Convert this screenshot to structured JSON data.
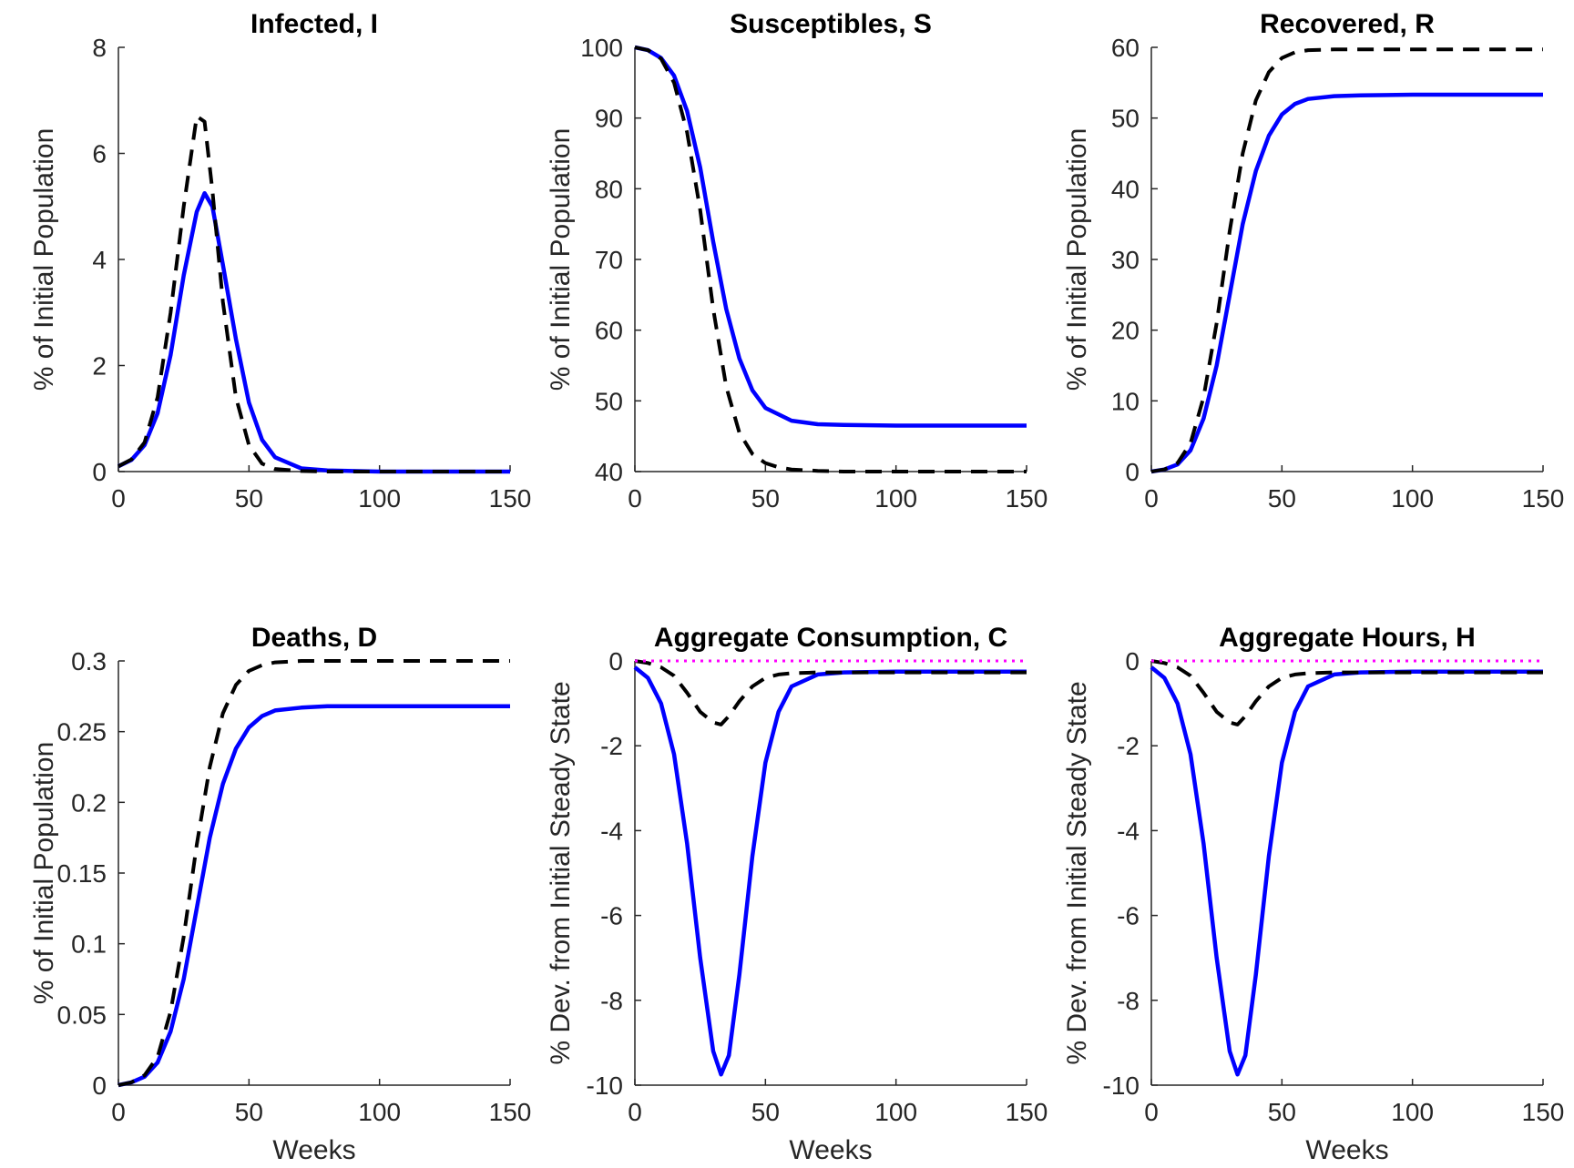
{
  "figure": {
    "colors": {
      "series1": "#0000ff",
      "series2": "#000000",
      "reference": "#ff00ff",
      "axis": "#262626"
    }
  },
  "chart_data": [
    {
      "type": "line",
      "title": "Infected, I",
      "xlabel": "",
      "ylabel": "% of Initial Population",
      "xlim": [
        0,
        150
      ],
      "ylim": [
        0,
        8
      ],
      "xticks": [
        0,
        50,
        100,
        150
      ],
      "yticks": [
        0,
        2,
        4,
        6,
        8
      ],
      "series": [
        {
          "style": "solid",
          "color": "#0000ff",
          "x": [
            0,
            5,
            10,
            15,
            20,
            25,
            30,
            33,
            36,
            40,
            45,
            50,
            55,
            60,
            70,
            80,
            100,
            150
          ],
          "y": [
            0.1,
            0.22,
            0.5,
            1.1,
            2.2,
            3.7,
            4.9,
            5.25,
            5.0,
            3.9,
            2.5,
            1.3,
            0.6,
            0.27,
            0.06,
            0.02,
            0.0,
            0.0
          ]
        },
        {
          "style": "dashed",
          "color": "#000000",
          "x": [
            0,
            5,
            10,
            15,
            20,
            25,
            30,
            33,
            36,
            40,
            45,
            50,
            55,
            60,
            70,
            80,
            100,
            150
          ],
          "y": [
            0.1,
            0.23,
            0.55,
            1.4,
            3.0,
            5.0,
            6.7,
            6.6,
            5.3,
            3.2,
            1.4,
            0.5,
            0.15,
            0.05,
            0.01,
            0.0,
            0.0,
            0.0
          ]
        }
      ]
    },
    {
      "type": "line",
      "title": "Susceptibles, S",
      "xlabel": "",
      "ylabel": "% of Initial Population",
      "xlim": [
        0,
        150
      ],
      "ylim": [
        40,
        100
      ],
      "xticks": [
        0,
        50,
        100,
        150
      ],
      "yticks": [
        40,
        50,
        60,
        70,
        80,
        90,
        100
      ],
      "series": [
        {
          "style": "solid",
          "color": "#0000ff",
          "x": [
            0,
            5,
            10,
            15,
            20,
            25,
            30,
            35,
            40,
            45,
            50,
            60,
            70,
            80,
            100,
            150
          ],
          "y": [
            100,
            99.6,
            98.5,
            96.0,
            91.0,
            83.0,
            72.5,
            63.0,
            56.0,
            51.5,
            49.0,
            47.2,
            46.7,
            46.6,
            46.5,
            46.5
          ]
        },
        {
          "style": "dashed",
          "color": "#000000",
          "x": [
            0,
            5,
            10,
            15,
            20,
            25,
            30,
            35,
            40,
            45,
            50,
            55,
            60,
            70,
            80,
            100,
            150
          ],
          "y": [
            100,
            99.6,
            98.4,
            95.0,
            88.0,
            77.0,
            63.0,
            52.0,
            45.5,
            42.5,
            41.2,
            40.6,
            40.3,
            40.1,
            40.0,
            40.0,
            40.0
          ]
        }
      ]
    },
    {
      "type": "line",
      "title": "Recovered, R",
      "xlabel": "",
      "ylabel": "% of Initial Population",
      "xlim": [
        0,
        150
      ],
      "ylim": [
        0,
        60
      ],
      "xticks": [
        0,
        50,
        100,
        150
      ],
      "yticks": [
        0,
        10,
        20,
        30,
        40,
        50,
        60
      ],
      "series": [
        {
          "style": "solid",
          "color": "#0000ff",
          "x": [
            0,
            5,
            10,
            15,
            20,
            25,
            30,
            35,
            40,
            45,
            50,
            55,
            60,
            70,
            80,
            100,
            150
          ],
          "y": [
            0,
            0.3,
            1.0,
            3.0,
            7.5,
            15.0,
            25.0,
            35.0,
            42.5,
            47.5,
            50.5,
            52.0,
            52.7,
            53.1,
            53.2,
            53.3,
            53.3
          ]
        },
        {
          "style": "dashed",
          "color": "#000000",
          "x": [
            0,
            5,
            10,
            15,
            20,
            25,
            30,
            35,
            40,
            45,
            50,
            55,
            60,
            70,
            80,
            100,
            150
          ],
          "y": [
            0,
            0.3,
            1.2,
            4.0,
            10.5,
            21.0,
            34.0,
            45.0,
            52.5,
            56.5,
            58.5,
            59.3,
            59.6,
            59.7,
            59.7,
            59.7,
            59.7
          ]
        }
      ]
    },
    {
      "type": "line",
      "title": "Deaths, D",
      "xlabel": "Weeks",
      "ylabel": "% of Initial Population",
      "xlim": [
        0,
        150
      ],
      "ylim": [
        0,
        0.3
      ],
      "xticks": [
        0,
        50,
        100,
        150
      ],
      "yticks": [
        0,
        0.05,
        0.1,
        0.15,
        0.2,
        0.25,
        0.3
      ],
      "series": [
        {
          "style": "solid",
          "color": "#0000ff",
          "x": [
            0,
            5,
            10,
            15,
            20,
            25,
            30,
            35,
            40,
            45,
            50,
            55,
            60,
            70,
            80,
            100,
            150
          ],
          "y": [
            0,
            0.002,
            0.006,
            0.016,
            0.038,
            0.075,
            0.125,
            0.175,
            0.213,
            0.238,
            0.253,
            0.261,
            0.265,
            0.267,
            0.268,
            0.268,
            0.268
          ]
        },
        {
          "style": "dashed",
          "color": "#000000",
          "x": [
            0,
            5,
            10,
            15,
            20,
            25,
            30,
            35,
            40,
            45,
            50,
            55,
            60,
            70,
            80,
            100,
            150
          ],
          "y": [
            0,
            0.002,
            0.007,
            0.02,
            0.052,
            0.105,
            0.17,
            0.225,
            0.263,
            0.283,
            0.293,
            0.297,
            0.299,
            0.3,
            0.3,
            0.3,
            0.3
          ]
        }
      ]
    },
    {
      "type": "line",
      "title": "Aggregate Consumption, C",
      "xlabel": "Weeks",
      "ylabel": "% Dev. from Initial Steady State",
      "xlim": [
        0,
        150
      ],
      "ylim": [
        -10,
        0
      ],
      "xticks": [
        0,
        50,
        100,
        150
      ],
      "yticks": [
        -10,
        -8,
        -6,
        -4,
        -2,
        0
      ],
      "series": [
        {
          "style": "solid",
          "color": "#0000ff",
          "x": [
            0,
            5,
            10,
            15,
            20,
            25,
            30,
            33,
            36,
            40,
            45,
            50,
            55,
            60,
            70,
            80,
            100,
            150
          ],
          "y": [
            -0.15,
            -0.4,
            -1.0,
            -2.2,
            -4.3,
            -7.0,
            -9.2,
            -9.75,
            -9.3,
            -7.4,
            -4.6,
            -2.4,
            -1.2,
            -0.6,
            -0.32,
            -0.27,
            -0.25,
            -0.25
          ]
        },
        {
          "style": "dashed",
          "color": "#000000",
          "x": [
            0,
            5,
            10,
            15,
            20,
            25,
            30,
            33,
            36,
            40,
            45,
            50,
            55,
            60,
            70,
            80,
            100,
            150
          ],
          "y": [
            0,
            -0.05,
            -0.15,
            -0.35,
            -0.75,
            -1.2,
            -1.45,
            -1.5,
            -1.3,
            -0.95,
            -0.6,
            -0.4,
            -0.32,
            -0.29,
            -0.27,
            -0.27,
            -0.27,
            -0.27
          ]
        },
        {
          "style": "dotted",
          "color": "#ff00ff",
          "x": [
            0,
            150
          ],
          "y": [
            0,
            0
          ]
        }
      ]
    },
    {
      "type": "line",
      "title": "Aggregate Hours, H",
      "xlabel": "Weeks",
      "ylabel": "% Dev. from Initial Steady State",
      "xlim": [
        0,
        150
      ],
      "ylim": [
        -10,
        0
      ],
      "xticks": [
        0,
        50,
        100,
        150
      ],
      "yticks": [
        -10,
        -8,
        -6,
        -4,
        -2,
        0
      ],
      "series": [
        {
          "style": "solid",
          "color": "#0000ff",
          "x": [
            0,
            5,
            10,
            15,
            20,
            25,
            30,
            33,
            36,
            40,
            45,
            50,
            55,
            60,
            70,
            80,
            100,
            150
          ],
          "y": [
            -0.15,
            -0.4,
            -1.0,
            -2.2,
            -4.3,
            -7.0,
            -9.2,
            -9.75,
            -9.3,
            -7.4,
            -4.6,
            -2.4,
            -1.2,
            -0.6,
            -0.32,
            -0.27,
            -0.25,
            -0.25
          ]
        },
        {
          "style": "dashed",
          "color": "#000000",
          "x": [
            0,
            5,
            10,
            15,
            20,
            25,
            30,
            33,
            36,
            40,
            45,
            50,
            55,
            60,
            70,
            80,
            100,
            150
          ],
          "y": [
            0,
            -0.05,
            -0.15,
            -0.35,
            -0.75,
            -1.2,
            -1.45,
            -1.5,
            -1.3,
            -0.95,
            -0.6,
            -0.4,
            -0.32,
            -0.29,
            -0.27,
            -0.27,
            -0.27,
            -0.27
          ]
        },
        {
          "style": "dotted",
          "color": "#ff00ff",
          "x": [
            0,
            150
          ],
          "y": [
            0,
            0
          ]
        }
      ]
    }
  ]
}
